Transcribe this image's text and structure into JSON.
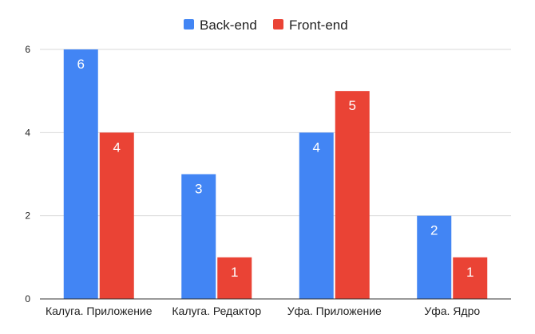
{
  "chart_data": {
    "type": "bar",
    "categories": [
      "Калуга. Приложение",
      "Калуга. Редактор",
      "Уфа. Приложение",
      "Уфа. Ядро"
    ],
    "series": [
      {
        "name": "Back-end",
        "values": [
          6,
          3,
          4,
          2
        ],
        "color": "#4285f4"
      },
      {
        "name": "Front-end",
        "values": [
          4,
          1,
          5,
          1
        ],
        "color": "#ea4335"
      }
    ],
    "title": "",
    "xlabel": "",
    "ylabel": "",
    "ylim": [
      0,
      6
    ],
    "yticks": [
      "0",
      "2",
      "4",
      "6"
    ],
    "grid": true,
    "legend_position": "top-center",
    "data_labels": [
      [
        "6",
        "3",
        "4",
        "2"
      ],
      [
        "4",
        "1",
        "5",
        "1"
      ]
    ]
  }
}
